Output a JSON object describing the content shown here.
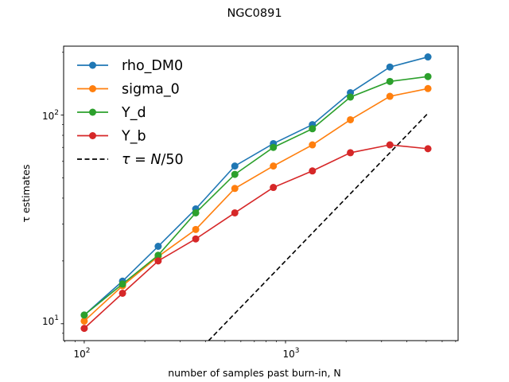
{
  "chart_data": {
    "type": "line",
    "title": "NGC0891",
    "xlabel": "number of samples past burn-in, N",
    "ylabel": "τ estimates",
    "xscale": "log",
    "yscale": "log",
    "xlim": [
      79,
      7200
    ],
    "ylim": [
      8.3,
      214
    ],
    "grid": false,
    "legend_position": "top-left",
    "x": [
      100,
      155,
      233,
      358,
      560,
      870,
      1360,
      2100,
      3300,
      5100
    ],
    "series": [
      {
        "name": "rho_DM0",
        "color": "#1f77b4",
        "marker": "circle",
        "linestyle": "solid",
        "values": [
          11.0,
          16.0,
          23.5,
          35.5,
          57.0,
          73.0,
          90.0,
          128.0,
          170.0,
          190.0
        ]
      },
      {
        "name": "sigma_0",
        "color": "#ff7f0e",
        "marker": "circle",
        "linestyle": "solid",
        "values": [
          10.3,
          15.2,
          21.0,
          28.3,
          44.5,
          57.0,
          72.0,
          95.0,
          123.0,
          134.0
        ]
      },
      {
        "name": "Y_d",
        "color": "#2ca02c",
        "marker": "circle",
        "linestyle": "solid",
        "values": [
          11.0,
          15.5,
          21.3,
          34.0,
          52.0,
          70.0,
          86.0,
          122.0,
          145.0,
          153.0
        ]
      },
      {
        "name": "Y_b",
        "color": "#d62728",
        "marker": "circle",
        "linestyle": "solid",
        "values": [
          9.5,
          14.0,
          20.0,
          25.5,
          34.0,
          45.0,
          54.0,
          66.0,
          72.0,
          69.0
        ]
      }
    ],
    "reference_line": {
      "name": "τ = N/50",
      "formula": "y = x / 50",
      "color": "#000000",
      "linestyle": "dashed",
      "x_range": [
        390,
        5100
      ]
    },
    "x_tick_labels": [
      "10^2",
      "10^3"
    ],
    "y_tick_labels": [
      "10^1",
      "10^2"
    ]
  }
}
